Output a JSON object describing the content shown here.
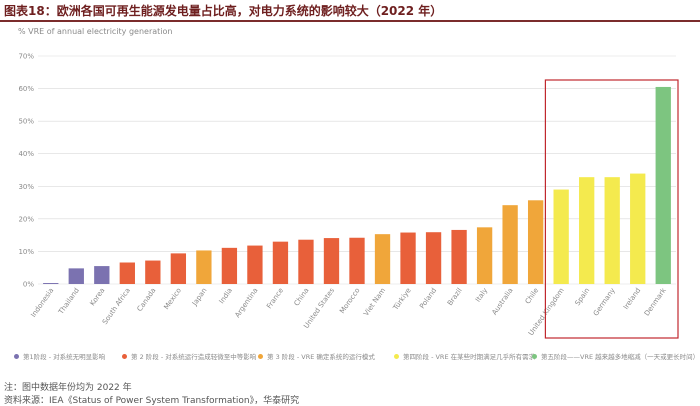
{
  "title": "图表18：欧洲各国可再生能源发电量占比高，对电力系统的影响较大（2022 年）",
  "chart_data": {
    "type": "bar",
    "ylabel": "% VRE of annual electricity generation",
    "ylim": [
      0,
      70
    ],
    "yticks": [
      "0%",
      "10%",
      "20%",
      "30%",
      "40%",
      "50%",
      "60%",
      "70%"
    ],
    "grid": true,
    "categories": [
      "Indonesia",
      "Thailand",
      "Korea",
      "South Africa",
      "Canada",
      "Mexico",
      "Japan",
      "India",
      "Argentina",
      "France",
      "China",
      "United States",
      "Morocco",
      "Viet Nam",
      "Türkiye",
      "Poland",
      "Brazil",
      "Italy",
      "Australia",
      "Chile",
      "United Kingdom",
      "Spain",
      "Germany",
      "Ireland",
      "Denmark"
    ],
    "values": [
      0.3,
      4.8,
      5.5,
      6.6,
      7.2,
      9.4,
      10.3,
      11.1,
      11.8,
      13.0,
      13.6,
      14.1,
      14.2,
      15.3,
      15.8,
      15.9,
      16.6,
      17.4,
      24.2,
      25.7,
      29.0,
      32.8,
      32.8,
      33.9,
      60.5
    ],
    "phases": [
      1,
      1,
      1,
      2,
      2,
      2,
      3,
      2,
      2,
      2,
      2,
      2,
      2,
      3,
      2,
      2,
      2,
      3,
      3,
      3,
      4,
      4,
      4,
      4,
      5
    ],
    "highlight_box": "United Kingdom – Denmark",
    "legend": [
      {
        "label": "第1阶段 - 对系统无明显影响",
        "color": "#7b72b0"
      },
      {
        "label": "第 2 阶段 - 对系统运行造成轻微至中等影响",
        "color": "#e8603a"
      },
      {
        "label": "第 3 阶段 - VRE 确定系统的运行模式",
        "color": "#f0a63a"
      },
      {
        "label": "第四阶段 - VRE 在某些时期满足几乎所有需求",
        "color": "#f4ea4e"
      },
      {
        "label": "第五阶段——VRE 越来越多地缩减（一天或更长时间）",
        "color": "#7dc580"
      }
    ]
  },
  "colors": {
    "phase1": "#7b72b0",
    "phase2": "#e8603a",
    "phase3": "#f0a63a",
    "phase4": "#f4ea4e",
    "phase5": "#7dc580",
    "grid": "#d9d9d9",
    "highlight": "#c0282e",
    "title": "#6e1f1f"
  },
  "note": "注：图中数据年份均为 2022 年",
  "source": "资料来源：IEA《Status of Power System Transformation》，华泰研究"
}
